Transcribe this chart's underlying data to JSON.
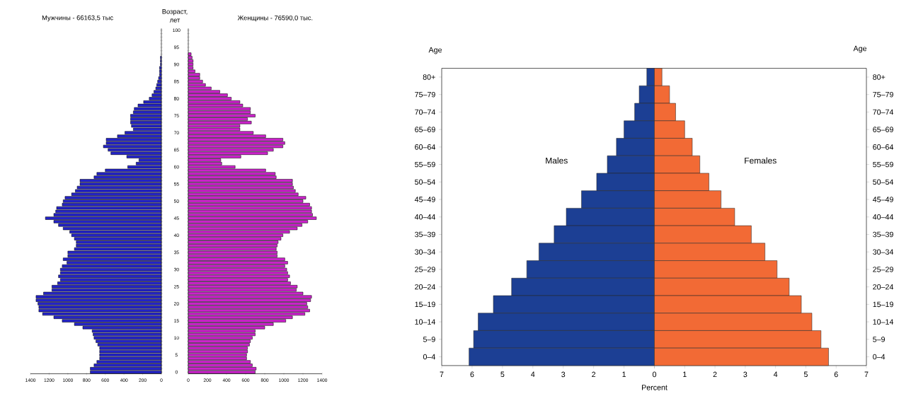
{
  "chart_data": [
    {
      "type": "bar",
      "orientation": "horizontal",
      "title": "Мужчины - 66163,5 тыс",
      "tick_labels": "x",
      "categories": [
        "100",
        null,
        null,
        null,
        null,
        "95",
        null,
        null,
        null,
        null,
        "90",
        null,
        null,
        null,
        null,
        "85",
        null,
        null,
        null,
        null,
        "80",
        null,
        null,
        null,
        null,
        "75",
        null,
        null,
        null,
        null,
        "70",
        null,
        null,
        null,
        null,
        "65",
        null,
        null,
        null,
        null,
        "60",
        null,
        null,
        null,
        null,
        "55",
        null,
        null,
        null,
        null,
        "50",
        null,
        null,
        null,
        null,
        "45",
        null,
        null,
        null,
        null,
        "40",
        null,
        null,
        null,
        null,
        "35",
        null,
        null,
        null,
        null,
        "30",
        null,
        null,
        null,
        null,
        "25",
        null,
        null,
        null,
        null,
        "20",
        null,
        null,
        null,
        null,
        "15",
        null,
        null,
        null,
        null,
        "10",
        null,
        null,
        null,
        null,
        "5",
        null,
        null,
        null,
        null,
        "0"
      ],
      "series": [
        {
          "color": "#2323c8",
          "values": [
            null,
            null,
            null,
            null,
            null,
            null,
            null,
            null,
            10,
            10,
            10,
            20,
            20,
            20,
            30,
            40,
            50,
            60,
            80,
            100,
            130,
            190,
            250,
            290,
            300,
            330,
            330,
            330,
            320,
            300,
            390,
            470,
            590,
            590,
            620,
            570,
            540,
            370,
            240,
            270,
            360,
            600,
            690,
            720,
            870,
            870,
            900,
            920,
            960,
            1030,
            1050,
            1060,
            1120,
            1130,
            1150,
            1240,
            1150,
            1100,
            1050,
            980,
            960,
            930,
            910,
            910,
            930,
            1000,
            1000,
            1050,
            1010,
            1060,
            1080,
            1080,
            1100,
            1080,
            1110,
            1170,
            1170,
            1260,
            1340,
            1340,
            1320,
            1310,
            1310,
            1270,
            1150,
            1060,
            930,
            840,
            740,
            730,
            720,
            700,
            680,
            660,
            660,
            660,
            660,
            690,
            720,
            760,
            760
          ]
        }
      ],
      "xlim": [
        1400,
        0
      ],
      "xticks": [
        1400,
        1200,
        1000,
        800,
        600,
        400,
        200,
        0
      ]
    },
    {
      "type": "bar",
      "orientation": "horizontal",
      "title": "Женщины - 76590,0 тыс.",
      "ylabel": "Возраст, лет",
      "categories": [
        "100",
        null,
        null,
        null,
        null,
        "95",
        null,
        null,
        null,
        null,
        "90",
        null,
        null,
        null,
        null,
        "85",
        null,
        null,
        null,
        null,
        "80",
        null,
        null,
        null,
        null,
        "75",
        null,
        null,
        null,
        null,
        "70",
        null,
        null,
        null,
        null,
        "65",
        null,
        null,
        null,
        null,
        "60",
        null,
        null,
        null,
        null,
        "55",
        null,
        null,
        null,
        null,
        "50",
        null,
        null,
        null,
        null,
        "45",
        null,
        null,
        null,
        null,
        "40",
        null,
        null,
        null,
        null,
        "35",
        null,
        null,
        null,
        null,
        "30",
        null,
        null,
        null,
        null,
        "25",
        null,
        null,
        null,
        null,
        "20",
        null,
        null,
        null,
        null,
        "15",
        null,
        null,
        null,
        null,
        "10",
        null,
        null,
        null,
        null,
        "5",
        null,
        null,
        null,
        null,
        "0"
      ],
      "series": [
        {
          "color": "#cc22cc",
          "values": [
            null,
            null,
            null,
            null,
            null,
            null,
            null,
            30,
            40,
            50,
            50,
            50,
            70,
            120,
            120,
            150,
            180,
            240,
            330,
            410,
            450,
            540,
            570,
            650,
            650,
            700,
            620,
            660,
            540,
            540,
            680,
            810,
            990,
            1010,
            990,
            890,
            830,
            550,
            340,
            350,
            490,
            810,
            910,
            920,
            1090,
            1090,
            1100,
            1120,
            1150,
            1230,
            1200,
            1270,
            1290,
            1290,
            1300,
            1340,
            1250,
            1190,
            1140,
            1060,
            990,
            970,
            940,
            930,
            920,
            930,
            930,
            1010,
            1040,
            1010,
            1030,
            1040,
            1060,
            1040,
            1070,
            1140,
            1130,
            1200,
            1290,
            1280,
            1240,
            1250,
            1270,
            1220,
            1090,
            1020,
            890,
            800,
            700,
            700,
            670,
            650,
            640,
            620,
            620,
            610,
            610,
            650,
            670,
            710,
            700
          ]
        }
      ],
      "xlim": [
        0,
        1400
      ],
      "xticks": [
        0,
        200,
        400,
        600,
        800,
        1000,
        1200,
        1400
      ]
    },
    {
      "type": "bar",
      "orientation": "horizontal",
      "ylabel": "Age",
      "categories": [
        "80+",
        "75–79",
        "70–74",
        "65–69",
        "60–64",
        "55–59",
        "50–54",
        "45–49",
        "40–44",
        "35–39",
        "30–34",
        "25–29",
        "20–24",
        "15–19",
        "10–14",
        "5–9",
        "0–4"
      ],
      "series": [
        {
          "name": "Males",
          "color": "#1c3f94",
          "values": [
            0.25,
            0.5,
            0.65,
            1.0,
            1.25,
            1.55,
            1.9,
            2.4,
            2.9,
            3.3,
            3.8,
            4.2,
            4.7,
            5.3,
            5.8,
            5.95,
            6.1
          ]
        }
      ],
      "xlim": [
        7,
        0
      ],
      "xticks": [
        7,
        6,
        5,
        4,
        3,
        2,
        1,
        {
          "value": 0,
          "label": null
        }
      ]
    },
    {
      "type": "bar",
      "orientation": "horizontal",
      "ylabel": "Age",
      "xlabel": "Percent",
      "categories": [
        "80+",
        "75–79",
        "70–74",
        "65–69",
        "60–64",
        "55–59",
        "50–54",
        "45–49",
        "40–44",
        "35–39",
        "30–34",
        "25–29",
        "20–24",
        "15–19",
        "10–14",
        "5–9",
        "0–4"
      ],
      "series": [
        {
          "name": "Females",
          "color": "#f26a35",
          "values": [
            0.25,
            0.5,
            0.7,
            1.0,
            1.25,
            1.5,
            1.8,
            2.2,
            2.65,
            3.2,
            3.65,
            4.05,
            4.45,
            4.85,
            5.2,
            5.5,
            5.75
          ]
        }
      ],
      "xlim": [
        0,
        7
      ],
      "xticks": [
        0,
        1,
        2,
        3,
        4,
        5,
        6,
        7
      ]
    }
  ]
}
